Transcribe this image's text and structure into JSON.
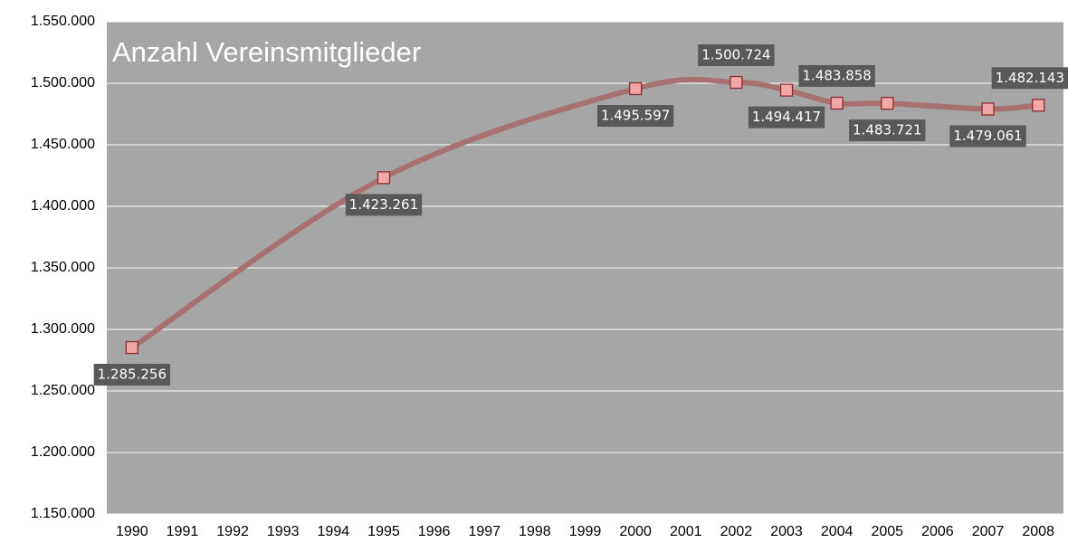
{
  "chart_data": {
    "type": "line",
    "title": "Anzahl Vereinsmitglieder",
    "x": [
      1990,
      1995,
      2000,
      2002,
      2003,
      2004,
      2005,
      2007,
      2008
    ],
    "series": [
      {
        "name": "Anzahl Vereinsmitglieder",
        "color": "#a86a6a",
        "marker_color": "#f2a7a7",
        "values": [
          1285256,
          1423261,
          1495597,
          1500724,
          1494417,
          1483858,
          1483721,
          1479061,
          1482143
        ],
        "value_labels": [
          "1.285.256",
          "1.423.261",
          "1.495.597",
          "1.500.724",
          "1.494.417",
          "1.483.858",
          "1.483.721",
          "1.479.061",
          "1.482.143"
        ]
      }
    ],
    "xlim": [
      1989.5,
      2008.5
    ],
    "xticks": [
      1990,
      1991,
      1992,
      1993,
      1994,
      1995,
      1996,
      1997,
      1998,
      1999,
      2000,
      2001,
      2002,
      2003,
      2004,
      2005,
      2006,
      2007,
      2008
    ],
    "ylim": [
      1150000,
      1550000
    ],
    "yticks": [
      {
        "value": 1150000,
        "label": "1.150.000"
      },
      {
        "value": 1200000,
        "label": "1.200.000"
      },
      {
        "value": 1250000,
        "label": "1.250.000"
      },
      {
        "value": 1300000,
        "label": "1.300.000"
      },
      {
        "value": 1350000,
        "label": "1.350.000"
      },
      {
        "value": 1400000,
        "label": "1.400.000"
      },
      {
        "value": 1450000,
        "label": "1.450.000"
      },
      {
        "value": 1500000,
        "label": "1.500.000"
      },
      {
        "value": 1550000,
        "label": "1.550.000"
      }
    ],
    "grid": true,
    "background": "#a6a6a6"
  }
}
